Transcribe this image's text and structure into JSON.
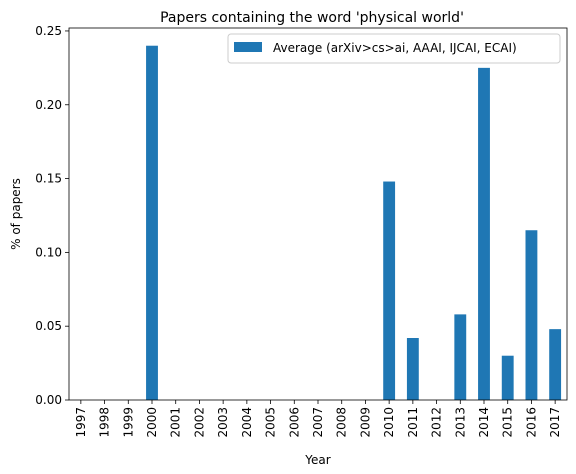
{
  "chart_data": {
    "type": "bar",
    "title": "Papers containing the word 'physical world'",
    "xlabel": "Year",
    "ylabel": "% of papers",
    "categories": [
      "1997",
      "1998",
      "1999",
      "2000",
      "2001",
      "2002",
      "2003",
      "2004",
      "2005",
      "2006",
      "2007",
      "2008",
      "2009",
      "2010",
      "2011",
      "2012",
      "2013",
      "2014",
      "2015",
      "2016",
      "2017"
    ],
    "series": [
      {
        "name": "Average (arXiv>cs>ai, AAAI, IJCAI, ECAI)",
        "color": "#1f77b4",
        "values": [
          0,
          0,
          0,
          0.24,
          0,
          0,
          0,
          0,
          0,
          0,
          0,
          0,
          0,
          0.148,
          0.042,
          0,
          0.058,
          0.225,
          0.03,
          0.115,
          0.048
        ]
      }
    ],
    "ylim": [
      0,
      0.252
    ],
    "yticks": [
      "0.00",
      "0.05",
      "0.10",
      "0.15",
      "0.20",
      "0.25"
    ],
    "grid": false,
    "legend_position": "top-right"
  }
}
